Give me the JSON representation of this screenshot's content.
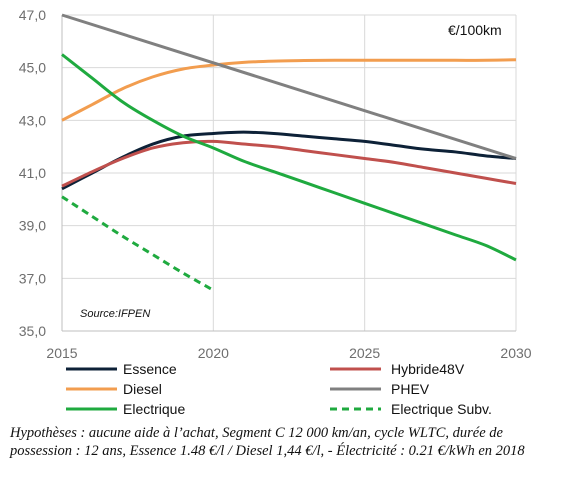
{
  "chart_data": {
    "type": "line",
    "unit_label": "€/100km",
    "source": "Source:IFPEN",
    "x_ticks": [
      "2015",
      "2020",
      "2025",
      "2030"
    ],
    "y_ticks": [
      "35,0",
      "37,0",
      "39,0",
      "41,0",
      "43,0",
      "45,0",
      "47,0"
    ],
    "xlim": [
      2015,
      2030
    ],
    "ylim": [
      35,
      47
    ],
    "grid": true,
    "legend_position": "bottom",
    "series": [
      {
        "name": "Essence",
        "color": "#0d2137",
        "dash": "solid",
        "x": [
          2015,
          2016,
          2017,
          2018,
          2019,
          2020,
          2021,
          2022,
          2023,
          2024,
          2025,
          2026,
          2027,
          2028,
          2029,
          2030
        ],
        "y": [
          40.4,
          41.0,
          41.6,
          42.1,
          42.4,
          42.5,
          42.55,
          42.5,
          42.4,
          42.3,
          42.2,
          42.05,
          41.9,
          41.8,
          41.65,
          41.55
        ]
      },
      {
        "name": "Hybride48V",
        "color": "#c0504d",
        "dash": "solid",
        "x": [
          2015,
          2016,
          2017,
          2018,
          2019,
          2020,
          2021,
          2022,
          2023,
          2024,
          2025,
          2026,
          2027,
          2028,
          2029,
          2030
        ],
        "y": [
          40.5,
          41.05,
          41.55,
          41.95,
          42.15,
          42.2,
          42.1,
          42.0,
          41.85,
          41.7,
          41.55,
          41.4,
          41.2,
          41.0,
          40.8,
          40.6
        ]
      },
      {
        "name": "Diesel",
        "color": "#f29d4f",
        "dash": "solid",
        "x": [
          2015,
          2016,
          2017,
          2018,
          2019,
          2020,
          2021,
          2022,
          2023,
          2024,
          2025,
          2026,
          2027,
          2028,
          2029,
          2030
        ],
        "y": [
          43.0,
          43.6,
          44.2,
          44.65,
          44.95,
          45.1,
          45.2,
          45.25,
          45.27,
          45.28,
          45.28,
          45.28,
          45.28,
          45.28,
          45.28,
          45.3
        ]
      },
      {
        "name": "PHEV",
        "color": "#808080",
        "dash": "solid",
        "x": [
          2015,
          2030
        ],
        "y": [
          47.0,
          41.55
        ]
      },
      {
        "name": "Electrique",
        "color": "#1faa3f",
        "dash": "solid",
        "x": [
          2015,
          2016,
          2017,
          2018,
          2019,
          2020,
          2021,
          2022,
          2023,
          2024,
          2025,
          2026,
          2027,
          2028,
          2029,
          2030
        ],
        "y": [
          45.5,
          44.6,
          43.7,
          43.0,
          42.4,
          41.95,
          41.45,
          41.05,
          40.65,
          40.25,
          39.85,
          39.45,
          39.05,
          38.65,
          38.25,
          37.7
        ]
      },
      {
        "name": "Electrique Subv.",
        "color": "#1faa3f",
        "dash": "dashed",
        "x": [
          2015,
          2016,
          2017,
          2018,
          2019,
          2020
        ],
        "y": [
          40.1,
          39.35,
          38.6,
          37.9,
          37.2,
          36.55
        ]
      }
    ],
    "caption": "Hypothèses : aucune aide à l’achat, Segment C 12 000 km/an, cycle WLTC, durée de possession : 12 ans, Essence 1.48 €/l / Diesel 1,44  €/l, - Électricité : 0.21 €/kWh en 2018"
  }
}
